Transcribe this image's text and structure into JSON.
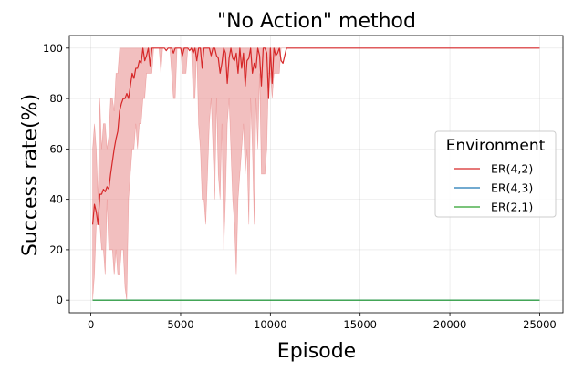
{
  "chart_data": {
    "type": "line",
    "title": "\"No Action\" method",
    "xlabel": "Episode",
    "ylabel": "Success rate(%)",
    "xlim": [
      -1200,
      26300
    ],
    "ylim": [
      -5,
      105
    ],
    "xticks": [
      0,
      5000,
      10000,
      15000,
      20000,
      25000
    ],
    "xtick_labels": [
      "0",
      "5000",
      "10000",
      "15000",
      "20000",
      "25000"
    ],
    "yticks": [
      0,
      20,
      40,
      60,
      80,
      100
    ],
    "ytick_labels": [
      "0",
      "20",
      "40",
      "60",
      "80",
      "100"
    ],
    "grid": true,
    "legend": {
      "title": "Environment",
      "placement": "center-right"
    },
    "series": [
      {
        "name": "ER(4,2)",
        "color": "#d62728",
        "band_color": "#e88a8b",
        "x": [
          100,
          200,
          300,
          400,
          500,
          600,
          700,
          800,
          900,
          1000,
          1100,
          1200,
          1300,
          1400,
          1500,
          1600,
          1700,
          1800,
          1900,
          2000,
          2100,
          2200,
          2300,
          2400,
          2500,
          2600,
          2700,
          2800,
          2900,
          3000,
          3100,
          3200,
          3300,
          3400,
          3500,
          3600,
          3700,
          3800,
          3900,
          4000,
          4100,
          4200,
          4300,
          4400,
          4500,
          4600,
          4700,
          4800,
          4900,
          5000,
          5100,
          5200,
          5300,
          5400,
          5500,
          5600,
          5700,
          5800,
          5900,
          6000,
          6100,
          6200,
          6300,
          6400,
          6500,
          6600,
          6700,
          6800,
          6900,
          7000,
          7100,
          7200,
          7300,
          7400,
          7500,
          7600,
          7700,
          7800,
          7900,
          8000,
          8100,
          8200,
          8300,
          8400,
          8500,
          8600,
          8700,
          8800,
          8900,
          9000,
          9100,
          9200,
          9300,
          9400,
          9500,
          9600,
          9700,
          9800,
          9900,
          10000,
          10100,
          10200,
          10300,
          10400,
          10500,
          10600,
          10700,
          10800,
          10900,
          11000,
          11100,
          25000
        ],
        "y": [
          30,
          38,
          35,
          30,
          42,
          42,
          44,
          43,
          45,
          44,
          50,
          55,
          60,
          64,
          67,
          75,
          78,
          80,
          80,
          82,
          80,
          85,
          90,
          88,
          92,
          92,
          95,
          94,
          100,
          95,
          97,
          100,
          93,
          100,
          100,
          100,
          100,
          100,
          100,
          100,
          100,
          99,
          100,
          100,
          100,
          98,
          100,
          100,
          100,
          100,
          97,
          100,
          100,
          100,
          99,
          100,
          98,
          100,
          95,
          100,
          100,
          92,
          100,
          100,
          100,
          100,
          97,
          100,
          100,
          97,
          96,
          90,
          94,
          100,
          98,
          86,
          96,
          100,
          96,
          95,
          98,
          90,
          100,
          92,
          98,
          85,
          95,
          96,
          100,
          90,
          94,
          92,
          100,
          97,
          85,
          100,
          100,
          98,
          80,
          100,
          86,
          100,
          97,
          98,
          100,
          95,
          94,
          97,
          100,
          100,
          100,
          100
        ],
        "band_lower": [
          0,
          10,
          30,
          30,
          30,
          20,
          20,
          10,
          40,
          20,
          20,
          20,
          10,
          20,
          10,
          10,
          20,
          20,
          5,
          0,
          40,
          50,
          60,
          60,
          70,
          60,
          70,
          70,
          80,
          80,
          90,
          90,
          90,
          90,
          100,
          100,
          100,
          100,
          90,
          100,
          100,
          100,
          100,
          100,
          90,
          80,
          80,
          100,
          100,
          100,
          90,
          90,
          90,
          100,
          100,
          100,
          80,
          80,
          100,
          70,
          60,
          40,
          40,
          30,
          50,
          70,
          80,
          60,
          40,
          80,
          50,
          40,
          70,
          20,
          40,
          70,
          80,
          60,
          40,
          30,
          10,
          40,
          50,
          60,
          70,
          50,
          60,
          30,
          80,
          60,
          30,
          80,
          60,
          90,
          50,
          50,
          50,
          60,
          90,
          90,
          80,
          90,
          90,
          90,
          90,
          100,
          100,
          100,
          100,
          100,
          100,
          100
        ],
        "band_upper": [
          60,
          70,
          60,
          40,
          80,
          60,
          70,
          70,
          60,
          65,
          80,
          80,
          75,
          90,
          90,
          100,
          100,
          100,
          100,
          100,
          100,
          100,
          100,
          100,
          100,
          100,
          100,
          100,
          100,
          100,
          100,
          100,
          100,
          100,
          100,
          100,
          100,
          100,
          100,
          100,
          100,
          100,
          100,
          100,
          100,
          100,
          100,
          100,
          100,
          100,
          100,
          100,
          100,
          100,
          100,
          100,
          100,
          100,
          100,
          100,
          100,
          100,
          100,
          100,
          100,
          100,
          100,
          100,
          100,
          100,
          100,
          100,
          100,
          100,
          100,
          100,
          100,
          100,
          100,
          100,
          100,
          100,
          100,
          100,
          100,
          100,
          100,
          100,
          100,
          100,
          100,
          100,
          100,
          100,
          100,
          100,
          100,
          100,
          100,
          100,
          100,
          100,
          100,
          100,
          100,
          100,
          100,
          100,
          100,
          100,
          100,
          100
        ]
      },
      {
        "name": "ER(4,3)",
        "color": "#1f77b4",
        "x": [
          100,
          25000
        ],
        "y": [
          0,
          0
        ]
      },
      {
        "name": "ER(2,1)",
        "color": "#2ca02c",
        "x": [
          100,
          25000
        ],
        "y": [
          0,
          0
        ]
      }
    ]
  }
}
